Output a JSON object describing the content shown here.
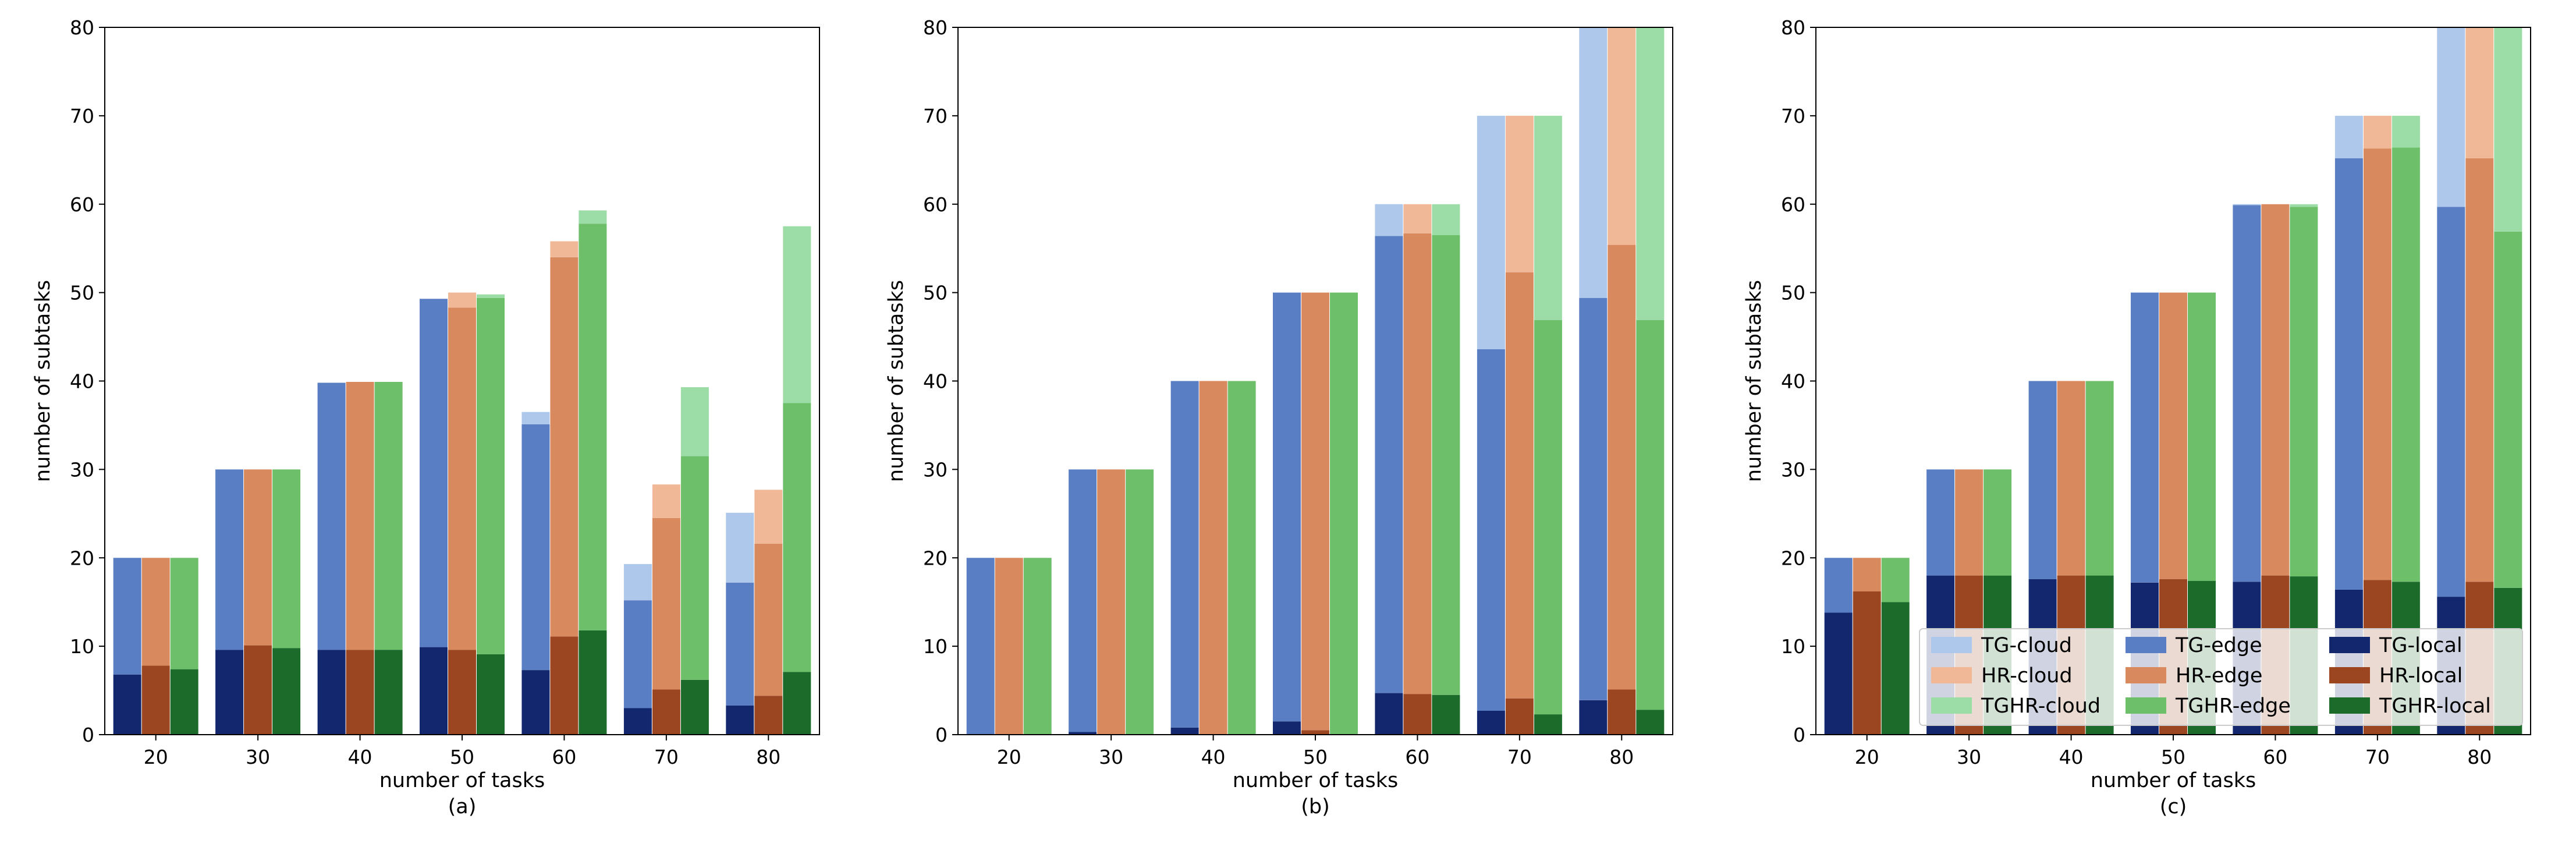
{
  "colors": {
    "TG-cloud": "#aec8eb",
    "TG-edge": "#5a7ec4",
    "TG-local": "#13276f",
    "HR-cloud": "#f0b896",
    "HR-edge": "#d9895e",
    "HR-local": "#9b4620",
    "TGHR-cloud": "#9cdca6",
    "TGHR-edge": "#6dbf6a",
    "TGHR-local": "#1c6b2a"
  },
  "chart_data": [
    {
      "type": "bar",
      "stacked": true,
      "caption": "(a)",
      "xlabel": "number of tasks",
      "ylabel": "number of subtasks",
      "ylim": [
        0,
        80
      ],
      "yticks": [
        0,
        10,
        20,
        30,
        40,
        50,
        60,
        70,
        80
      ],
      "categories": [
        "20",
        "30",
        "40",
        "50",
        "60",
        "70",
        "80"
      ],
      "algorithms": [
        {
          "name": "TG",
          "local": [
            6.8,
            9.6,
            9.6,
            9.9,
            7.3,
            3.0,
            3.3
          ],
          "edge": [
            13.2,
            20.4,
            30.2,
            39.4,
            27.8,
            12.2,
            13.9
          ],
          "cloud": [
            0,
            0,
            0,
            0,
            1.4,
            4.1,
            7.9
          ]
        },
        {
          "name": "HR",
          "local": [
            7.8,
            10.1,
            9.6,
            9.6,
            11.1,
            5.1,
            4.4
          ],
          "edge": [
            12.2,
            19.9,
            30.3,
            38.7,
            42.9,
            19.4,
            17.2
          ],
          "cloud": [
            0,
            0,
            0,
            1.7,
            1.8,
            3.8,
            6.1
          ]
        },
        {
          "name": "TGHR",
          "local": [
            7.4,
            9.8,
            9.6,
            9.1,
            11.8,
            6.2,
            7.1
          ],
          "edge": [
            12.6,
            20.2,
            30.3,
            40.3,
            46.0,
            25.3,
            30.4
          ],
          "cloud": [
            0,
            0,
            0,
            0.4,
            1.5,
            7.8,
            20.0
          ]
        }
      ]
    },
    {
      "type": "bar",
      "stacked": true,
      "caption": "(b)",
      "xlabel": "number of tasks",
      "ylabel": "number of subtasks",
      "ylim": [
        0,
        80
      ],
      "yticks": [
        0,
        10,
        20,
        30,
        40,
        50,
        60,
        70,
        80
      ],
      "categories": [
        "20",
        "30",
        "40",
        "50",
        "60",
        "70",
        "80"
      ],
      "algorithms": [
        {
          "name": "TG",
          "local": [
            0,
            0.3,
            0.8,
            1.5,
            4.7,
            2.7,
            3.9
          ],
          "edge": [
            20,
            29.7,
            39.2,
            48.5,
            51.7,
            40.9,
            45.5
          ],
          "cloud": [
            0,
            0,
            0,
            0,
            3.6,
            26.4,
            30.6
          ]
        },
        {
          "name": "HR",
          "local": [
            0,
            0,
            0,
            0.5,
            4.6,
            4.1,
            5.1
          ],
          "edge": [
            20,
            30,
            40,
            49.5,
            52.1,
            48.2,
            50.3
          ],
          "cloud": [
            0,
            0,
            0,
            0,
            3.3,
            17.7,
            24.6
          ]
        },
        {
          "name": "TGHR",
          "local": [
            0,
            0,
            0,
            0,
            4.5,
            2.3,
            2.8
          ],
          "edge": [
            20,
            30,
            40,
            50,
            52.0,
            44.6,
            44.1
          ],
          "cloud": [
            0,
            0,
            0,
            0,
            3.5,
            23.1,
            33.1
          ]
        }
      ]
    },
    {
      "type": "bar",
      "stacked": true,
      "caption": "(c)",
      "xlabel": "number of tasks",
      "ylabel": "number of subtasks",
      "ylim": [
        0,
        80
      ],
      "yticks": [
        0,
        10,
        20,
        30,
        40,
        50,
        60,
        70,
        80
      ],
      "categories": [
        "20",
        "30",
        "40",
        "50",
        "60",
        "70",
        "80"
      ],
      "algorithms": [
        {
          "name": "TG",
          "local": [
            13.8,
            18.0,
            17.6,
            17.2,
            17.3,
            16.4,
            15.6
          ],
          "edge": [
            6.2,
            12.0,
            22.4,
            32.8,
            42.6,
            48.8,
            44.1
          ],
          "cloud": [
            0,
            0,
            0,
            0,
            0.1,
            4.8,
            20.3
          ]
        },
        {
          "name": "HR",
          "local": [
            16.2,
            18.0,
            18.0,
            17.6,
            18.0,
            17.5,
            17.3
          ],
          "edge": [
            3.8,
            12.0,
            22.0,
            32.4,
            42.0,
            48.8,
            47.9
          ],
          "cloud": [
            0,
            0,
            0,
            0,
            0,
            3.7,
            14.8
          ]
        },
        {
          "name": "TGHR",
          "local": [
            15.0,
            18.0,
            18.0,
            17.4,
            17.9,
            17.3,
            16.6
          ],
          "edge": [
            5.0,
            12.0,
            22.0,
            32.6,
            41.8,
            49.1,
            40.3
          ],
          "cloud": [
            0,
            0,
            0,
            0,
            0.3,
            3.6,
            23.1
          ]
        }
      ]
    }
  ],
  "legend": {
    "entries": [
      [
        "TG-cloud",
        "TG-edge",
        "TG-local"
      ],
      [
        "HR-cloud",
        "HR-edge",
        "HR-local"
      ],
      [
        "TGHR-cloud",
        "TGHR-edge",
        "TGHR-local"
      ]
    ]
  }
}
